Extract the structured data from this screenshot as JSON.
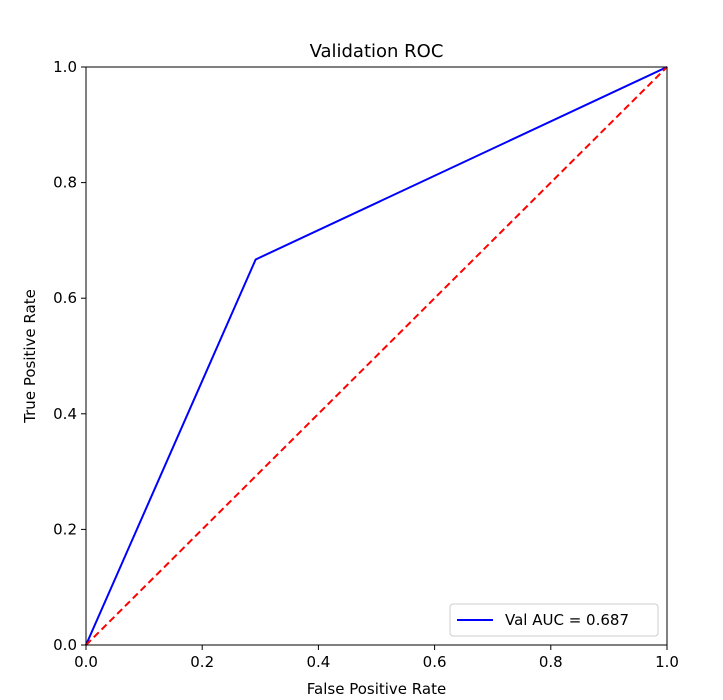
{
  "chart_data": {
    "type": "line",
    "title": "Validation ROC",
    "xlabel": "False Positive Rate",
    "ylabel": "True Positive Rate",
    "xlim": [
      0,
      1
    ],
    "ylim": [
      0,
      1
    ],
    "xticks": [
      "0.0",
      "0.2",
      "0.4",
      "0.6",
      "0.8",
      "1.0"
    ],
    "yticks": [
      "0.0",
      "0.2",
      "0.4",
      "0.6",
      "0.8",
      "1.0"
    ],
    "grid": false,
    "legend_position": "lower-right",
    "series": [
      {
        "name": "Val AUC = 0.687",
        "color": "#0000ff",
        "style": "solid",
        "x": [
          0.0,
          0.292,
          1.0
        ],
        "y": [
          0.0,
          0.667,
          1.0
        ]
      },
      {
        "color": "#ff0000",
        "style": "dashed",
        "x": [
          0.0,
          1.0
        ],
        "y": [
          0.0,
          1.0
        ]
      }
    ]
  }
}
